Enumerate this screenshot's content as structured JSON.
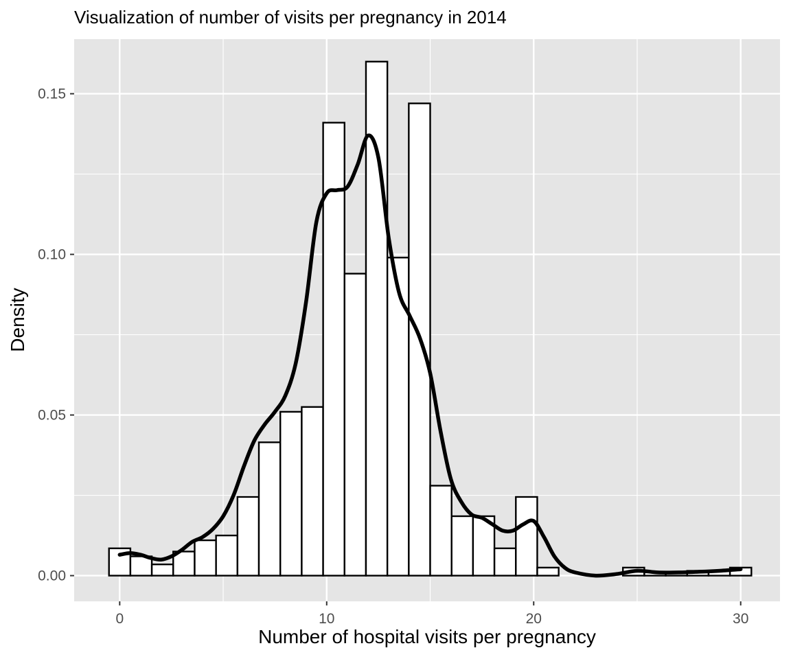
{
  "chart_data": {
    "type": "bar",
    "title": "Visualization of number of visits per pregnancy in 2014",
    "xlabel": "Number of hospital visits per pregnancy",
    "ylabel": "Density",
    "xlim": [
      -2.2,
      31.9
    ],
    "ylim": [
      -0.008,
      0.167
    ],
    "grid": true,
    "x_ticks": [
      0,
      10,
      20,
      30
    ],
    "x_tick_labels": [
      "0",
      "10",
      "20",
      "30"
    ],
    "y_ticks": [
      0.0,
      0.05,
      0.1,
      0.15
    ],
    "y_tick_labels": [
      "0.00",
      "0.05",
      "0.10",
      "0.15"
    ],
    "histogram": {
      "bin_width": 1.034,
      "bin_centers": [
        0.0,
        1.034,
        2.069,
        3.103,
        4.138,
        5.172,
        6.207,
        7.241,
        8.276,
        9.31,
        10.345,
        11.379,
        12.414,
        13.448,
        14.483,
        15.517,
        16.552,
        17.586,
        18.621,
        19.655,
        20.69,
        21.724,
        22.759,
        23.793,
        24.828,
        25.862,
        26.897,
        27.931,
        28.966,
        30.0
      ],
      "density": [
        0.0085,
        0.006,
        0.0035,
        0.0075,
        0.011,
        0.0125,
        0.0245,
        0.0415,
        0.051,
        0.0525,
        0.141,
        0.094,
        0.16,
        0.099,
        0.147,
        0.028,
        0.0185,
        0.0185,
        0.0085,
        0.0245,
        0.0025,
        0,
        0,
        0,
        0.0025,
        0.001,
        0.001,
        0.0015,
        0.0015,
        0.0025
      ]
    },
    "density_curve": {
      "x": [
        0.0,
        0.5,
        1.0,
        1.5,
        2.0,
        2.5,
        3.0,
        3.5,
        4.0,
        4.5,
        5.0,
        5.5,
        6.0,
        6.5,
        7.0,
        7.5,
        8.0,
        8.5,
        9.0,
        9.5,
        10.0,
        10.5,
        11.0,
        11.5,
        12.0,
        12.5,
        13.0,
        13.5,
        14.0,
        14.5,
        15.0,
        15.5,
        16.0,
        16.5,
        17.0,
        17.5,
        18.0,
        18.5,
        19.0,
        19.5,
        20.0,
        20.5,
        21.0,
        21.5,
        22.0,
        23.0,
        24.0,
        25.0,
        26.0,
        27.0,
        28.0,
        29.0,
        30.0
      ],
      "y": [
        0.0065,
        0.007,
        0.0065,
        0.0055,
        0.005,
        0.006,
        0.008,
        0.0105,
        0.012,
        0.0145,
        0.0185,
        0.025,
        0.034,
        0.042,
        0.047,
        0.051,
        0.056,
        0.066,
        0.085,
        0.11,
        0.119,
        0.12,
        0.121,
        0.128,
        0.137,
        0.13,
        0.105,
        0.088,
        0.081,
        0.074,
        0.063,
        0.045,
        0.03,
        0.023,
        0.019,
        0.018,
        0.016,
        0.014,
        0.014,
        0.016,
        0.017,
        0.012,
        0.006,
        0.0025,
        0.001,
        0.0,
        0.0005,
        0.0015,
        0.001,
        0.001,
        0.0012,
        0.0015,
        0.002
      ]
    },
    "colors": {
      "panel_background": "#e5e5e5",
      "gridline": "#ffffff",
      "bar_fill": "#ffffff",
      "bar_outline": "#000000",
      "curve": "#000000",
      "tick_text": "#4d4d4d"
    }
  }
}
